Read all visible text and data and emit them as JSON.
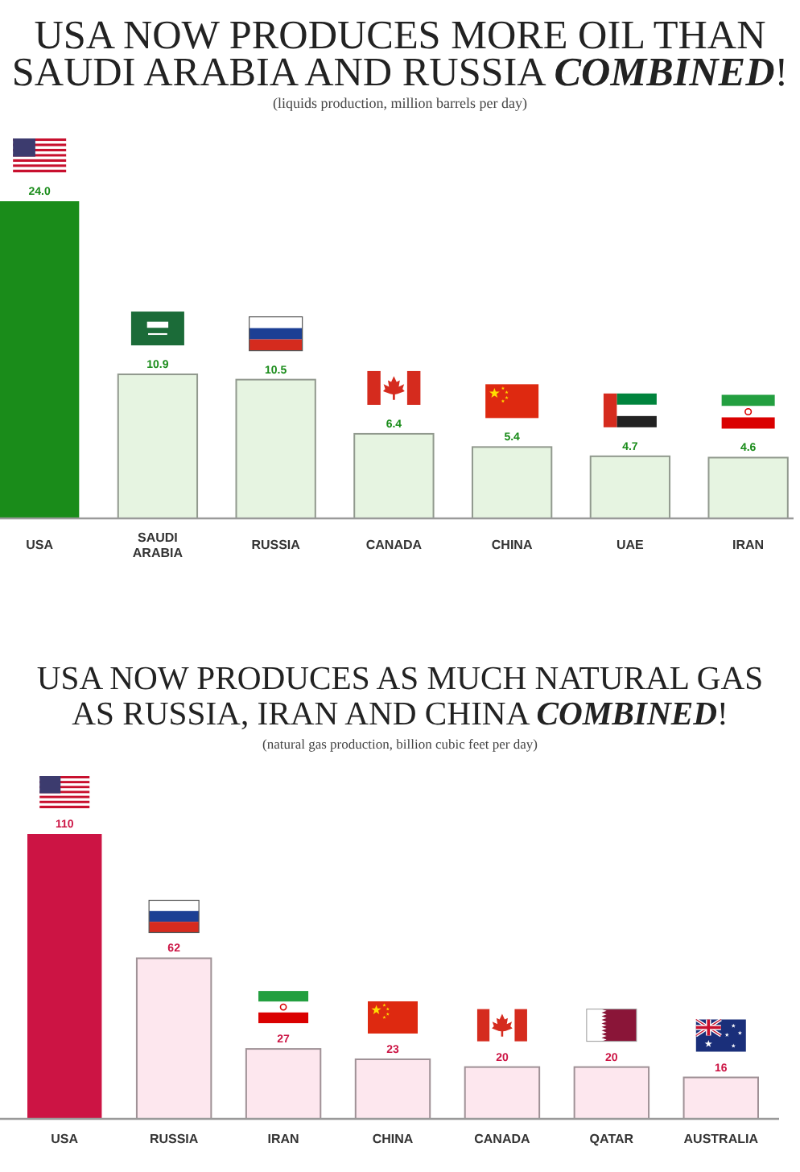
{
  "chart_data": [
    {
      "type": "bar",
      "title": "USA NOW PRODUCES MORE OIL THAN SAUDI ARABIA AND RUSSIA COMBINED!",
      "subtitle": "(liquids production, million barrels per day)",
      "categories": [
        "USA",
        "SAUDI ARABIA",
        "RUSSIA",
        "CANADA",
        "CHINA",
        "UAE",
        "IRAN"
      ],
      "values": [
        24.0,
        10.9,
        10.5,
        6.4,
        5.4,
        4.7,
        4.6
      ],
      "value_labels": [
        "24.0",
        "10.9",
        "10.5",
        "6.4",
        "5.4",
        "4.7",
        "4.6"
      ],
      "colors": [
        "#1a8c1a",
        "#e6f4e1",
        "#e6f4e1",
        "#e6f4e1",
        "#e6f4e1",
        "#e6f4e1",
        "#e6f4e1"
      ]
    },
    {
      "type": "bar",
      "title": "USA NOW PRODUCES AS MUCH NATURAL GAS AS RUSSIA, IRAN AND CHINA COMBINED!",
      "subtitle": "(natural gas production, billion cubic feet per day)",
      "categories": [
        "USA",
        "RUSSIA",
        "IRAN",
        "CHINA",
        "CANADA",
        "QATAR",
        "AUSTRALIA"
      ],
      "values": [
        110,
        62,
        27,
        23,
        20,
        20,
        16
      ],
      "data_labels": true,
      "colors": [
        "#cc1444",
        "#fde7ee",
        "#fde7ee",
        "#fde7ee",
        "#fde7ee",
        "#fde7ee",
        "#fde7ee"
      ]
    }
  ]
}
